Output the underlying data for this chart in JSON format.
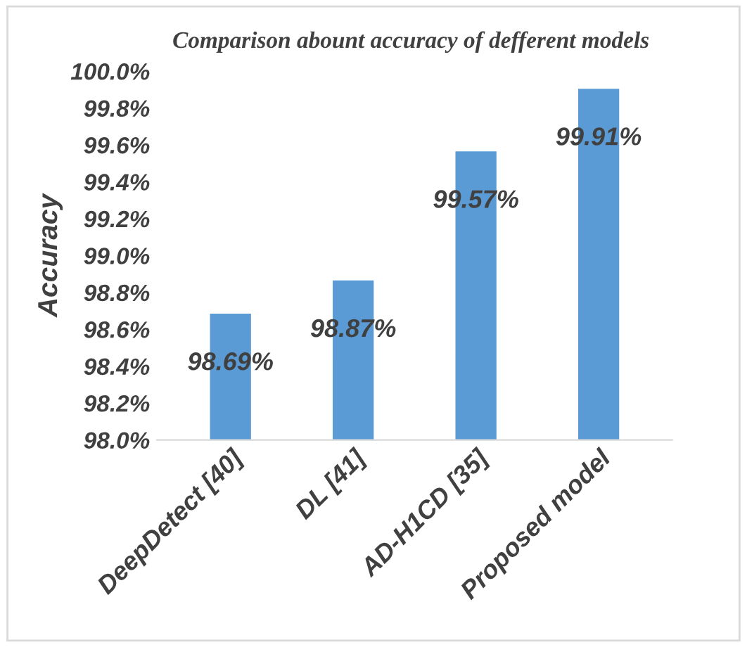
{
  "chart_data": {
    "type": "bar",
    "title": "Comparison abount accuracy of defferent models",
    "ylabel": "Accuracy",
    "categories": [
      "DeepDetect [40]",
      "DL [41]",
      "AD-H1CD [35]",
      "Proposed model"
    ],
    "values": [
      98.69,
      98.87,
      99.57,
      99.91
    ],
    "color": "#5b9bd5",
    "value_labels": [
      "98.69%",
      "98.87%",
      "99.57%",
      "99.91%"
    ],
    "ylim": [
      98.0,
      100.0
    ],
    "yticks": [
      {
        "value": 98.0,
        "label": "98.0%"
      },
      {
        "value": 98.2,
        "label": "98.2%"
      },
      {
        "value": 98.4,
        "label": "98.4%"
      },
      {
        "value": 98.6,
        "label": "98.6%"
      },
      {
        "value": 98.8,
        "label": "98.8%"
      },
      {
        "value": 99.0,
        "label": "99.0%"
      },
      {
        "value": 99.2,
        "label": "99.2%"
      },
      {
        "value": 99.4,
        "label": "99.4%"
      },
      {
        "value": 99.6,
        "label": "99.6%"
      },
      {
        "value": 99.8,
        "label": "99.8%"
      },
      {
        "value": 100.0,
        "label": "100.0%"
      }
    ],
    "grid": false,
    "legend": false
  }
}
